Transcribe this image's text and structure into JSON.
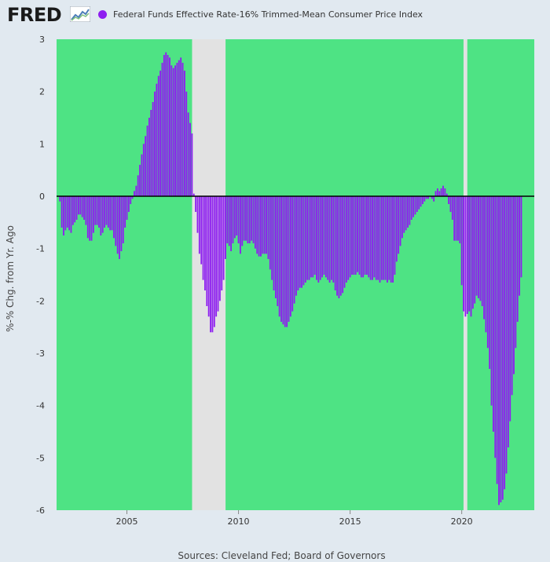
{
  "header": {
    "logo_text": "FRED",
    "legend_label": "Federal Funds Effective Rate-16% Trimmed-Mean Consumer Price Index",
    "legend_color": "#8e1ef0"
  },
  "footer": {
    "sources": "Sources: Cleveland Fed; Board of Governors"
  },
  "colors": {
    "plot_bg": "#4ee384",
    "bar": "#8e1ef0",
    "recession": "#e2e2e2",
    "zero_line": "#000000",
    "page_bg": "#e1e9f0"
  },
  "chart_data": {
    "type": "bar",
    "title": "",
    "xlabel": "",
    "ylabel": "%-% Chg. from Yr. Ago",
    "ylim": [
      -6,
      3
    ],
    "xlim": [
      2001.85,
      2023.25
    ],
    "yticks": [
      "3",
      "2",
      "1",
      "0",
      "-1",
      "-2",
      "-3",
      "-4",
      "-5",
      "-6"
    ],
    "xticks": [
      "2005",
      "2010",
      "2015",
      "2020"
    ],
    "grid": true,
    "legend_position": "top",
    "recessions": [
      [
        2007.92,
        2009.42
      ],
      [
        2020.08,
        2020.25
      ]
    ],
    "series": [
      {
        "name": "Federal Funds Effective Rate-16% Trimmed-Mean Consumer Price Index",
        "start": 2002.0,
        "step_months": 1,
        "values": [
          -0.1,
          -0.6,
          -0.75,
          -0.65,
          -0.6,
          -0.65,
          -0.7,
          -0.55,
          -0.5,
          -0.45,
          -0.35,
          -0.35,
          -0.4,
          -0.45,
          -0.55,
          -0.8,
          -0.85,
          -0.85,
          -0.7,
          -0.55,
          -0.55,
          -0.6,
          -0.75,
          -0.7,
          -0.6,
          -0.55,
          -0.6,
          -0.65,
          -0.65,
          -0.8,
          -0.95,
          -1.1,
          -1.2,
          -1.05,
          -0.9,
          -0.6,
          -0.45,
          -0.3,
          -0.15,
          -0.05,
          0.1,
          0.2,
          0.4,
          0.6,
          0.8,
          1.0,
          1.15,
          1.35,
          1.5,
          1.65,
          1.8,
          2.0,
          2.15,
          2.3,
          2.4,
          2.55,
          2.7,
          2.75,
          2.7,
          2.65,
          2.5,
          2.45,
          2.5,
          2.55,
          2.6,
          2.65,
          2.55,
          2.4,
          2.0,
          1.6,
          1.4,
          1.2,
          0.05,
          -0.3,
          -0.7,
          -1.1,
          -1.3,
          -1.6,
          -1.8,
          -2.1,
          -2.3,
          -2.6,
          -2.6,
          -2.5,
          -2.3,
          -2.2,
          -2.0,
          -1.8,
          -1.6,
          -1.2,
          -0.9,
          -0.95,
          -1.05,
          -0.9,
          -0.8,
          -0.75,
          -0.9,
          -1.1,
          -0.95,
          -0.85,
          -0.85,
          -0.9,
          -0.9,
          -0.85,
          -0.9,
          -1.0,
          -1.1,
          -1.15,
          -1.15,
          -1.1,
          -1.1,
          -1.1,
          -1.2,
          -1.4,
          -1.6,
          -1.8,
          -1.95,
          -2.1,
          -2.3,
          -2.4,
          -2.45,
          -2.5,
          -2.5,
          -2.4,
          -2.3,
          -2.2,
          -2.05,
          -1.9,
          -1.8,
          -1.75,
          -1.75,
          -1.7,
          -1.65,
          -1.6,
          -1.6,
          -1.55,
          -1.55,
          -1.5,
          -1.6,
          -1.65,
          -1.6,
          -1.55,
          -1.5,
          -1.55,
          -1.6,
          -1.65,
          -1.6,
          -1.65,
          -1.8,
          -1.9,
          -1.95,
          -1.9,
          -1.85,
          -1.75,
          -1.65,
          -1.6,
          -1.55,
          -1.5,
          -1.5,
          -1.5,
          -1.45,
          -1.5,
          -1.55,
          -1.55,
          -1.5,
          -1.5,
          -1.55,
          -1.6,
          -1.6,
          -1.55,
          -1.6,
          -1.6,
          -1.65,
          -1.6,
          -1.6,
          -1.6,
          -1.65,
          -1.6,
          -1.65,
          -1.65,
          -1.5,
          -1.25,
          -1.1,
          -0.95,
          -0.8,
          -0.7,
          -0.65,
          -0.6,
          -0.55,
          -0.45,
          -0.4,
          -0.35,
          -0.3,
          -0.25,
          -0.2,
          -0.15,
          -0.1,
          -0.05,
          -0.05,
          0.0,
          -0.05,
          -0.1,
          0.1,
          0.15,
          0.1,
          0.15,
          0.2,
          0.15,
          0.05,
          -0.15,
          -0.3,
          -0.45,
          -0.85,
          -0.85,
          -0.85,
          -0.9,
          -1.7,
          -2.2,
          -2.3,
          -2.25,
          -2.2,
          -2.3,
          -2.15,
          -2.05,
          -1.9,
          -1.95,
          -2.0,
          -2.1,
          -2.35,
          -2.6,
          -2.9,
          -3.3,
          -4.0,
          -4.5,
          -5.0,
          -5.5,
          -5.9,
          -5.85,
          -5.8,
          -5.6,
          -5.3,
          -4.8,
          -4.3,
          -3.8,
          -3.4,
          -2.9,
          -2.4,
          -1.9,
          -1.55
        ]
      }
    ]
  }
}
